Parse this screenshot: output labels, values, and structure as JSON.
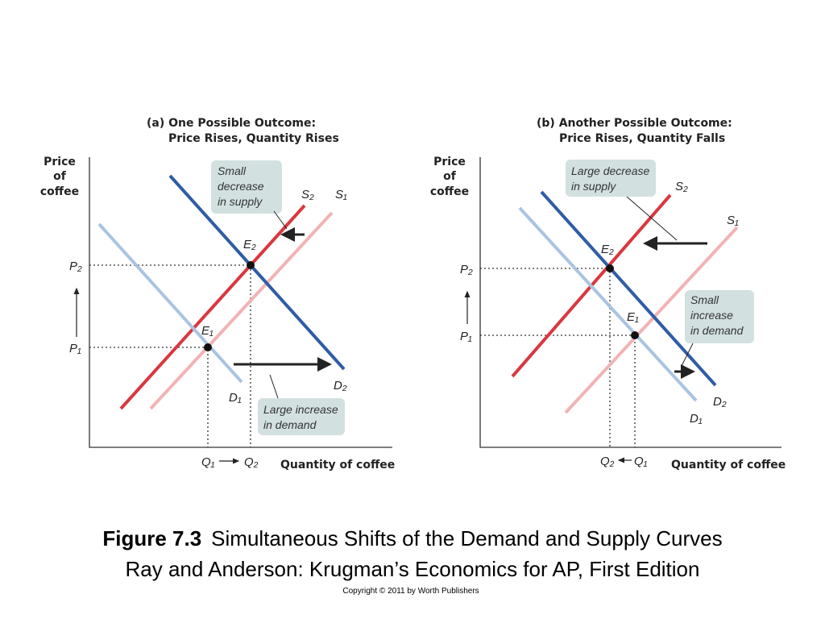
{
  "panels": [
    {
      "title": [
        "(a) One Possible Outcome:",
        "Price Rises, Quantity Rises"
      ],
      "y_label": [
        "Price",
        "of",
        "coffee"
      ],
      "x_label": "Quantity of coffee",
      "labels": {
        "S1": "S₁",
        "S2": "S₂",
        "D1": "D₁",
        "D2": "D₂",
        "E1": "E₁",
        "E2": "E₂",
        "P1": "P₁",
        "P2": "P₂",
        "Q1": "Q₁",
        "Q2": "Q₂"
      },
      "callouts": [
        [
          "Small",
          "decrease",
          "in supply"
        ],
        [
          "Large increase",
          "in demand"
        ]
      ]
    },
    {
      "title": [
        "(b) Another Possible Outcome:",
        "Price Rises, Quantity Falls"
      ],
      "y_label": [
        "Price",
        "of",
        "coffee"
      ],
      "x_label": "Quantity of coffee",
      "labels": {
        "S1": "S₁",
        "S2": "S₂",
        "D1": "D₁",
        "D2": "D₂",
        "E1": "E₁",
        "E2": "E₂",
        "P1": "P₁",
        "P2": "P₂",
        "Q1": "Q₁",
        "Q2": "Q₂"
      },
      "callouts": [
        [
          "Large decrease",
          "in supply"
        ],
        [
          "Small",
          "increase",
          "in demand"
        ]
      ]
    }
  ],
  "caption": {
    "figure_label": "Figure 7.3",
    "figure_title": "Simultaneous Shifts of the Demand and Supply Curves",
    "source": "Ray and Anderson: Krugman’s Economics for AP, First Edition",
    "copyright": "Copyright © 2011 by Worth Publishers"
  }
}
